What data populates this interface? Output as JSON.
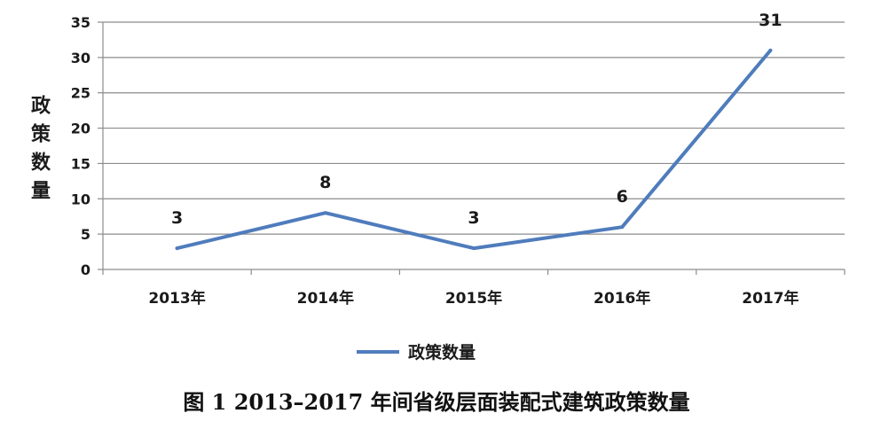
{
  "chart_data": {
    "type": "line",
    "categories": [
      "2013年",
      "2014年",
      "2015年",
      "2016年",
      "2017年"
    ],
    "series": [
      {
        "name": "政策数量",
        "values": [
          3,
          8,
          3,
          6,
          31
        ],
        "color": "#4f7cbc"
      }
    ],
    "ylabel": "政策数量",
    "xlabel": "",
    "ylim": [
      0,
      35
    ],
    "yticks": [
      0,
      5,
      10,
      15,
      20,
      25,
      30,
      35
    ],
    "grid": true,
    "legend": "bottom-center",
    "data_labels": true
  },
  "caption": "图 1   2013–2017 年间省级层面装配式建筑政策数量"
}
